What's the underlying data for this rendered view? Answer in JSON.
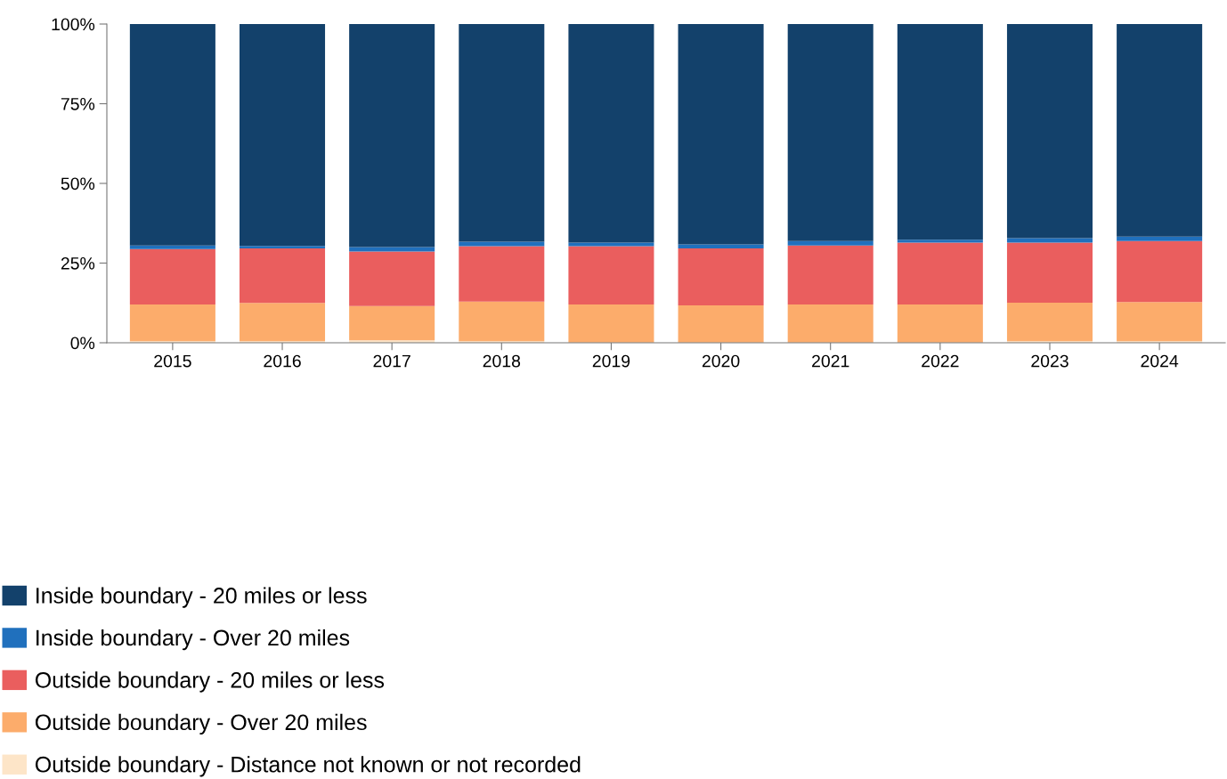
{
  "chart_data": {
    "type": "bar",
    "stacked": true,
    "categories": [
      "2015",
      "2016",
      "2017",
      "2018",
      "2019",
      "2020",
      "2021",
      "2022",
      "2023",
      "2024"
    ],
    "series": [
      {
        "name": "Outside boundary - Distance not known or not recorded",
        "color": "#fde5c8",
        "values": [
          0.5,
          0.5,
          0.8,
          0.5,
          0.1,
          0.1,
          0.1,
          0.1,
          0.5,
          0.5
        ]
      },
      {
        "name": "Outside boundary - Over 20 miles",
        "color": "#fcac6b",
        "values": [
          11.5,
          12.0,
          10.7,
          12.4,
          11.9,
          11.6,
          11.9,
          11.9,
          12.1,
          12.3
        ]
      },
      {
        "name": "Outside boundary - 20 miles or less",
        "color": "#ea5e5e",
        "values": [
          17.4,
          17.1,
          17.1,
          17.4,
          18.3,
          17.9,
          18.5,
          19.4,
          18.8,
          19.1
        ]
      },
      {
        "name": "Inside boundary - Over 20 miles",
        "color": "#2070bd",
        "values": [
          1.1,
          0.8,
          1.4,
          1.4,
          1.1,
          1.3,
          1.4,
          0.9,
          1.4,
          1.4
        ]
      },
      {
        "name": "Inside boundary - 20 miles or less",
        "color": "#13416b",
        "values": [
          69.5,
          69.7,
          70.0,
          68.3,
          68.6,
          69.1,
          68.1,
          67.7,
          67.2,
          66.7
        ]
      }
    ],
    "ylim": [
      0,
      100
    ],
    "yticks": [
      {
        "value": 0,
        "label": "0%"
      },
      {
        "value": 25,
        "label": "25%"
      },
      {
        "value": 50,
        "label": "50%"
      },
      {
        "value": 75,
        "label": "75%"
      },
      {
        "value": 100,
        "label": "100%"
      }
    ],
    "grid": false,
    "legend": "bottom left"
  }
}
